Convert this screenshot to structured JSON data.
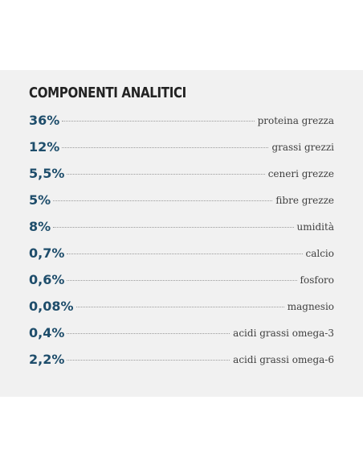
{
  "section": {
    "title": "COMPONENTI ANALITICI",
    "items": [
      {
        "value": "36%",
        "label": "proteina grezza"
      },
      {
        "value": "12%",
        "label": "grassi grezzi"
      },
      {
        "value": "5,5%",
        "label": "ceneri grezze"
      },
      {
        "value": "5%",
        "label": "fibre grezze"
      },
      {
        "value": "8%",
        "label": "umidità"
      },
      {
        "value": "0,7%",
        "label": "calcio"
      },
      {
        "value": "0,6%",
        "label": "fosforo"
      },
      {
        "value": "0,08%",
        "label": "magnesio"
      },
      {
        "value": "0,4%",
        "label": "acidi grassi omega-3"
      },
      {
        "value": "2,2%",
        "label": "acidi grassi omega-6"
      }
    ]
  },
  "colors": {
    "value": "#1e4d6b",
    "title": "#222222",
    "label": "#3f3f3f",
    "panel_background": "#f1f1f1"
  }
}
